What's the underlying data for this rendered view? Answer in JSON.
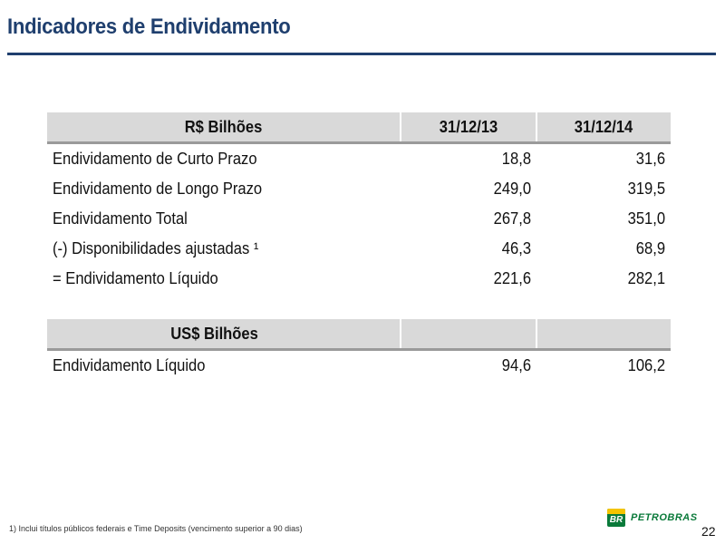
{
  "header": {
    "title": "Indicadores de Endividamento"
  },
  "brl_table": {
    "header": [
      "R$ Bilhões",
      "31/12/13",
      "31/12/14"
    ],
    "rows": [
      {
        "label": "Endividamento de Curto Prazo",
        "v2013": "18,8",
        "v2014": "31,6"
      },
      {
        "label": "Endividamento de Longo Prazo",
        "v2013": "249,0",
        "v2014": "319,5"
      },
      {
        "label": "Endividamento Total",
        "v2013": "267,8",
        "v2014": "351,0"
      },
      {
        "label": "(-) Disponibilidades  ajustadas ¹",
        "v2013": "46,3",
        "v2014": "68,9"
      },
      {
        "label": "= Endividamento Líquido",
        "v2013": "221,6",
        "v2014": "282,1"
      }
    ]
  },
  "usd_table": {
    "header": "US$ Bilhões",
    "rows": [
      {
        "label": "Endividamento Líquido",
        "v2013": "94,6",
        "v2014": "106,2"
      }
    ]
  },
  "footer": {
    "footnote": "1) Inclui títulos públicos federais  e Time Deposits (vencimento superior a 90 dias)",
    "logo_mark": "BR",
    "logo_text": "PETROBRAS",
    "page_number": "22"
  },
  "colors": {
    "title": "#1f3f6e",
    "header_bg": "#d9d9d9",
    "logo_green": "#0a7a3a",
    "logo_yellow": "#f4c400"
  }
}
